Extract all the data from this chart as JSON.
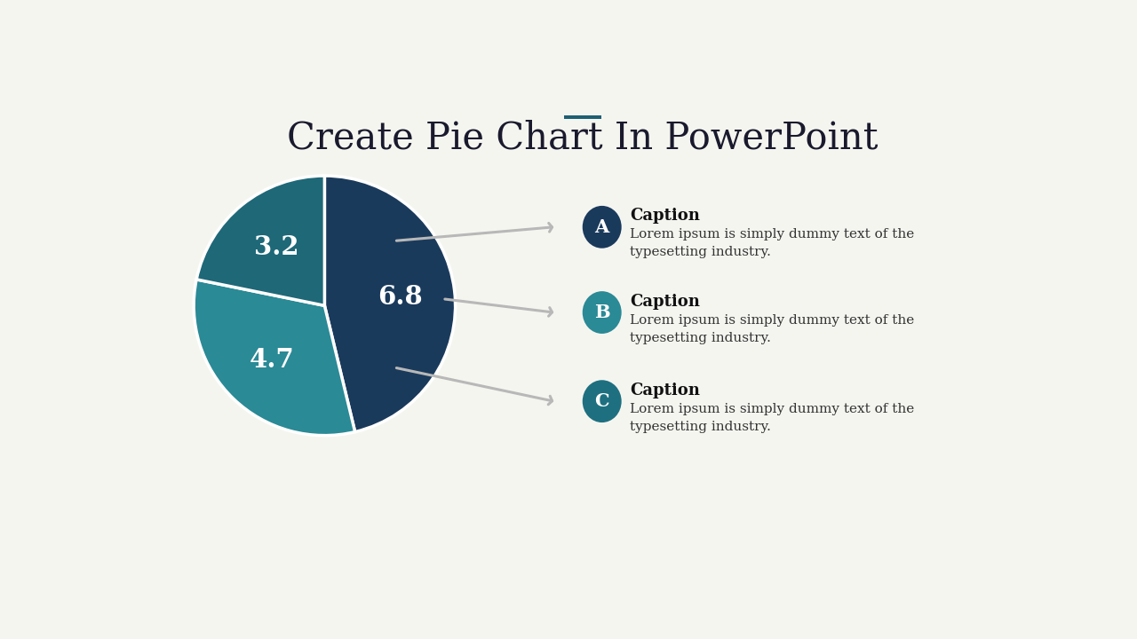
{
  "title": "Create Pie Chart In PowerPoint",
  "title_color": "#1a1a2e",
  "title_fontsize": 30,
  "accent_bar_color": "#1e5f74",
  "accent_bar_width": 55,
  "accent_bar_height": 5,
  "background_color": "#f5f5f0",
  "pie_values": [
    6.8,
    4.7,
    3.2
  ],
  "pie_labels": [
    "6.8",
    "4.7",
    "3.2"
  ],
  "pie_colors": [
    "#1a3a5c",
    "#2a8a96",
    "#1e6878"
  ],
  "sections": [
    {
      "letter": "A",
      "caption": "Caption",
      "text": "Lorem ipsum is simply dummy text of the\ntypesetting industry.",
      "circle_color": "#1a3a5c"
    },
    {
      "letter": "B",
      "caption": "Caption",
      "text": "Lorem ipsum is simply dummy text of the\ntypesetting industry.",
      "circle_color": "#2a8a96"
    },
    {
      "letter": "C",
      "caption": "Caption",
      "text": "Lorem ipsum is simply dummy text of the\ntypesetting industry.",
      "circle_color": "#1e7080"
    }
  ],
  "arrow_color": "#b8b8b8",
  "label_fontsize": 21,
  "caption_fontsize": 13,
  "body_fontsize": 11,
  "letter_fontsize": 15
}
